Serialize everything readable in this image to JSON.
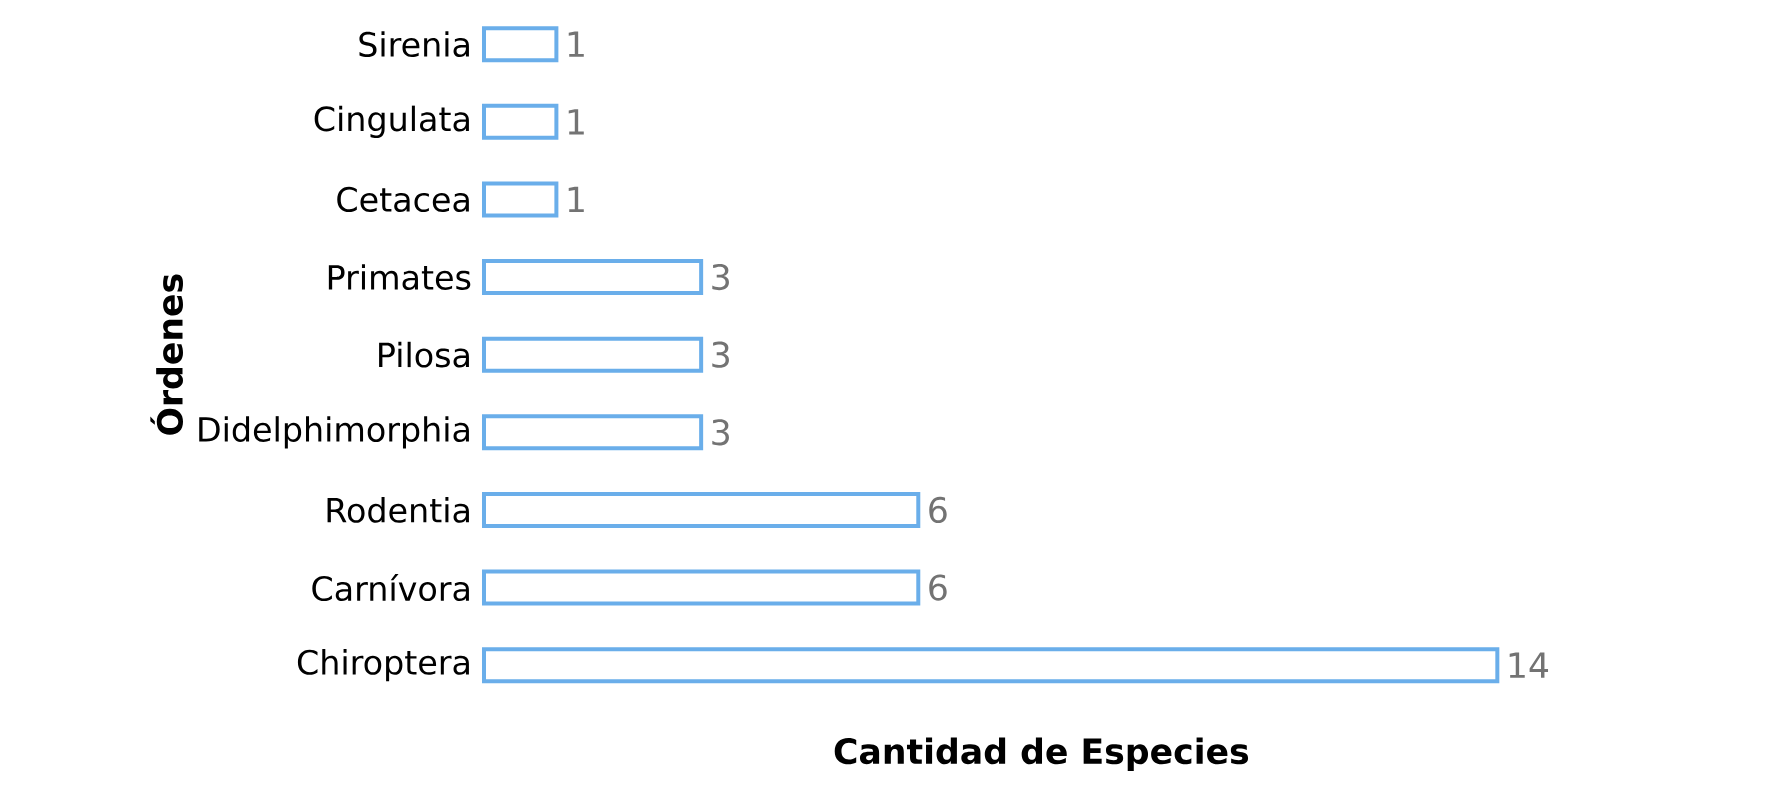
{
  "chart_data": {
    "type": "bar",
    "orientation": "horizontal",
    "xlabel": "Cantidad de Especies",
    "ylabel": "Órdenes",
    "categories": [
      "Sirenia",
      "Cingulata",
      "Cetacea",
      "Primates",
      "Pilosa",
      "Didelphimorphia",
      "Rodentia",
      "Carnívora",
      "Chiroptera"
    ],
    "values": [
      1,
      1,
      1,
      3,
      3,
      3,
      6,
      6,
      14
    ],
    "color": "#6aaeea",
    "data_labels": true
  }
}
